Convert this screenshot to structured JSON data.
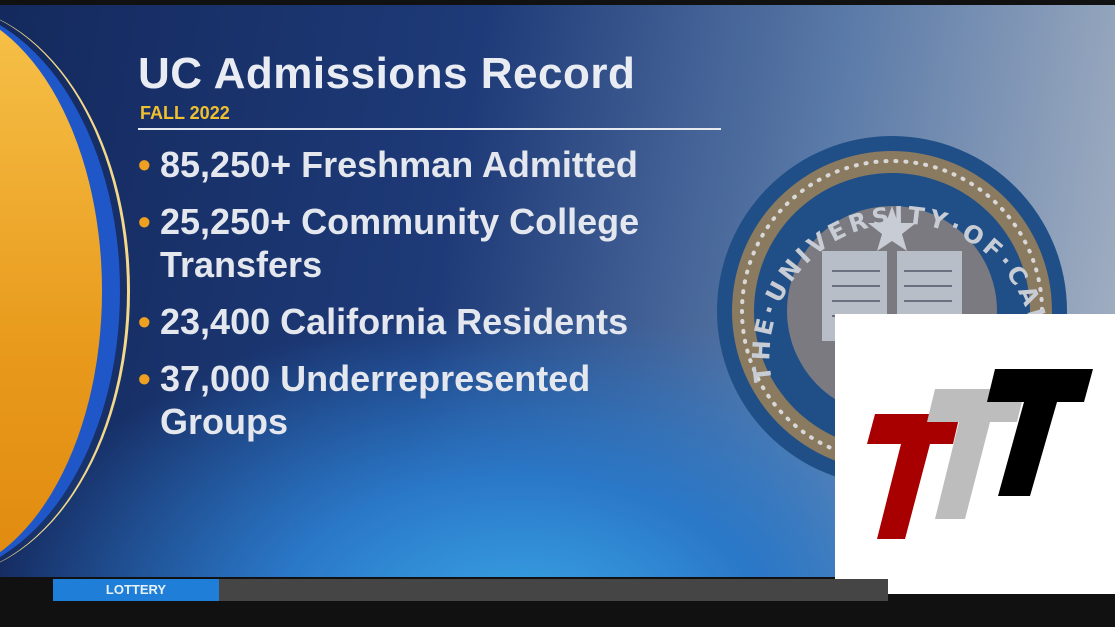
{
  "graphic": {
    "title": "UC Admissions Record",
    "subtitle": "FALL 2022",
    "bullets": [
      {
        "text": "85,250+ Freshman Admitted"
      },
      {
        "text": "25,250+ Community College Transfers"
      },
      {
        "text": "23,400 California Residents"
      },
      {
        "text": "37,000 Underrepresented Groups"
      }
    ],
    "seal_text": "THE·UNIVERSITY·OF·CALIFORNIA"
  },
  "ticker": {
    "label": "LOTTERY"
  },
  "colors": {
    "accent": "#f0c030",
    "ticker_label_bg": "#1f7fd8",
    "logo_red": "#a80000",
    "logo_gray": "#bdbdbd",
    "logo_black": "#000000"
  },
  "icons": {
    "seal": "university-of-california-seal",
    "logo": "ttt-logo"
  }
}
